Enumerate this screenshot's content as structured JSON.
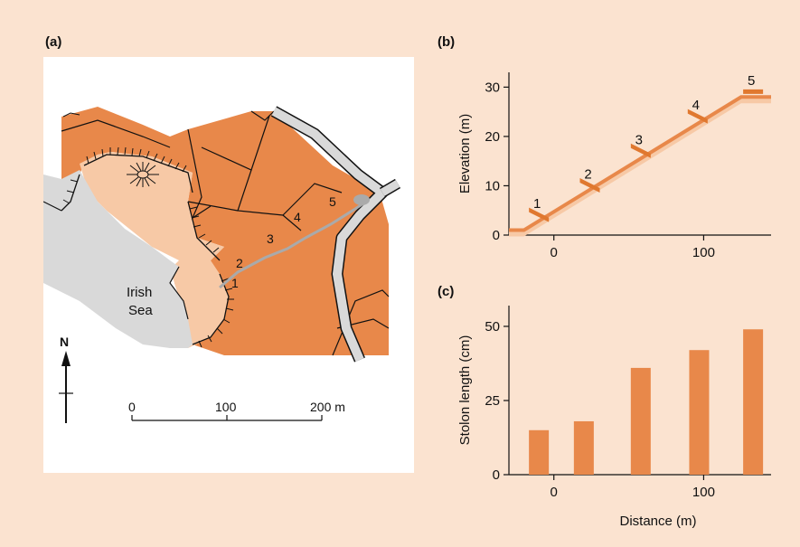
{
  "panels": {
    "a": {
      "label": "(a)"
    },
    "b": {
      "label": "(b)"
    },
    "c": {
      "label": "(c)"
    }
  },
  "map": {
    "sea_label_line1": "Irish",
    "sea_label_line2": "Sea",
    "north_label": "N",
    "sites": [
      "1",
      "2",
      "3",
      "4",
      "5"
    ],
    "scale_ticks": [
      "0",
      "100",
      "200 m"
    ],
    "colors": {
      "land": "#e8884a",
      "beach": "#f7c9a6",
      "sea": "#d9d9d9",
      "road": "#d9d9d9",
      "line": "#111111"
    }
  },
  "chart_data": [
    {
      "type": "line",
      "panel": "(b)",
      "ylabel": "Elevation (m)",
      "xlabel": "",
      "xlim": [
        -30,
        145
      ],
      "ylim": [
        0,
        33
      ],
      "xticks": [
        0,
        100
      ],
      "yticks": [
        0,
        10,
        20,
        30
      ],
      "profile": {
        "x": [
          -30,
          -20,
          125,
          145
        ],
        "y": [
          1,
          1,
          28,
          28
        ]
      },
      "sites": [
        {
          "label": "1",
          "x": -10,
          "y": 4
        },
        {
          "label": "2",
          "x": 24,
          "y": 10
        },
        {
          "label": "3",
          "x": 58,
          "y": 17
        },
        {
          "label": "4",
          "x": 96,
          "y": 24
        },
        {
          "label": "5",
          "x": 133,
          "y": 29
        }
      ],
      "colors": {
        "profile": "#e8884a",
        "profile_band": "#f7c9a6",
        "site": "#e0782f"
      }
    },
    {
      "type": "bar",
      "panel": "(c)",
      "ylabel": "Stolon length (cm)",
      "xlabel": "Distance (m)",
      "xlim": [
        -30,
        145
      ],
      "ylim": [
        0,
        57
      ],
      "xticks": [
        0,
        100
      ],
      "yticks": [
        0,
        25,
        50
      ],
      "x": [
        -10,
        20,
        58,
        97,
        133
      ],
      "values": [
        15,
        18,
        36,
        42,
        49
      ],
      "colors": {
        "bar": "#e8884a"
      }
    }
  ]
}
